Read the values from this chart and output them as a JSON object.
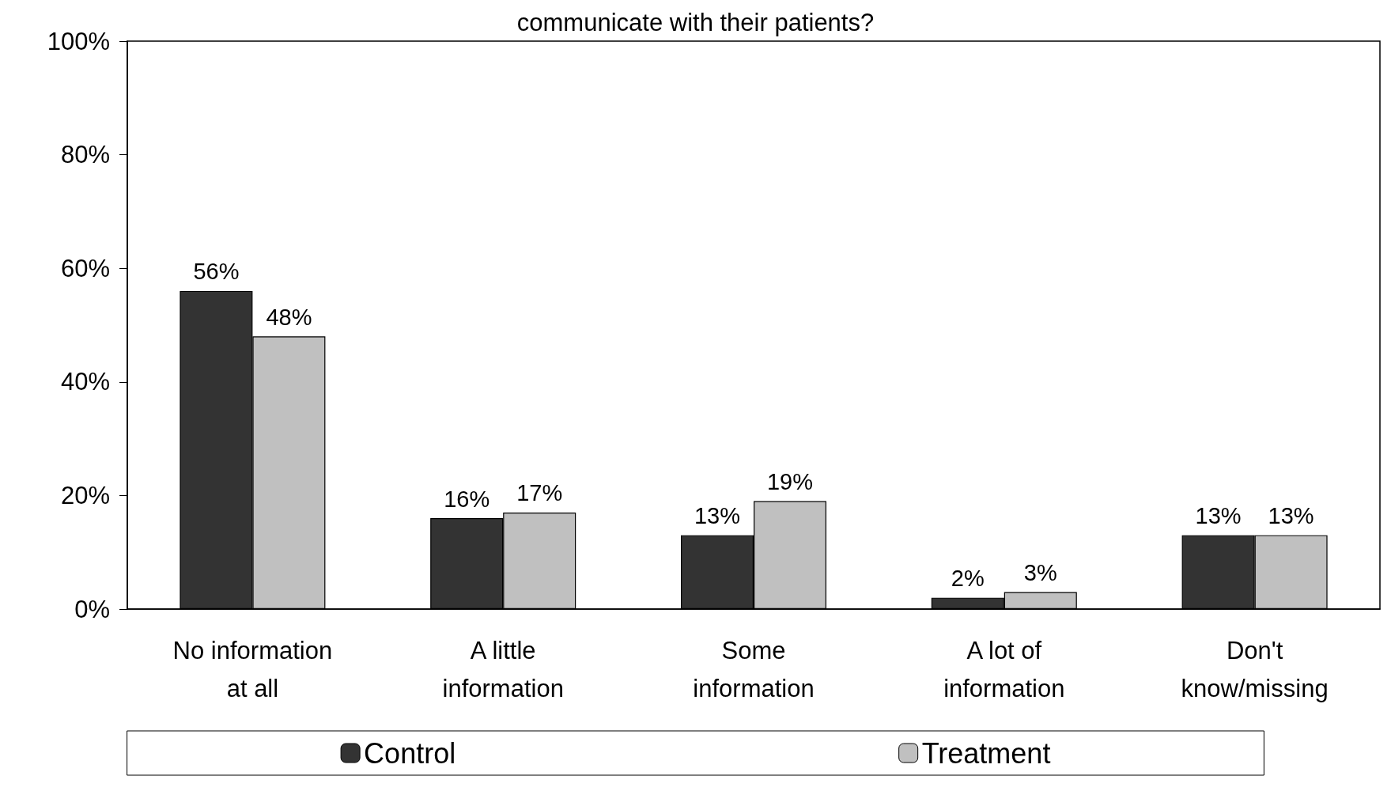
{
  "chart_data": {
    "type": "bar",
    "title": "communicate with their patients?",
    "categories": [
      "No information\nat all",
      "A little\ninformation",
      "Some\ninformation",
      "A lot of\ninformation",
      "Don't\nknow/missing"
    ],
    "series": [
      {
        "name": "Control",
        "color": "#333333",
        "values": [
          56,
          16,
          13,
          2,
          13
        ],
        "value_labels": [
          "56%",
          "16%",
          "13%",
          "2%",
          "13%"
        ]
      },
      {
        "name": "Treatment",
        "color": "#c0c0c0",
        "values": [
          48,
          17,
          19,
          3,
          13
        ],
        "value_labels": [
          "48%",
          "17%",
          "19%",
          "3%",
          "13%"
        ]
      }
    ],
    "ylim": [
      0,
      100
    ],
    "yticks": [
      {
        "value": 0,
        "label": "0%"
      },
      {
        "value": 20,
        "label": "20%"
      },
      {
        "value": 40,
        "label": "40%"
      },
      {
        "value": 60,
        "label": "60%"
      },
      {
        "value": 80,
        "label": "80%"
      },
      {
        "value": 100,
        "label": "100%"
      }
    ],
    "grid": false,
    "legend": "bottom"
  }
}
